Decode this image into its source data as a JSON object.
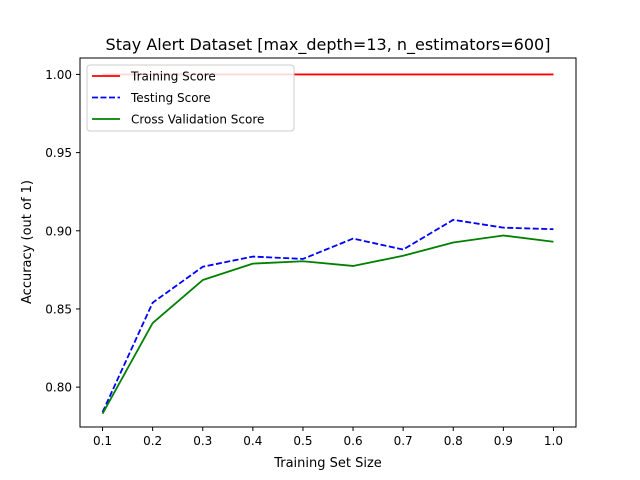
{
  "chart_data": {
    "type": "line",
    "title": "Stay Alert Dataset [max_depth=13, n_estimators=600]",
    "xlabel": "Training Set Size",
    "ylabel": "Accuracy (out of 1)",
    "x": [
      0.1,
      0.2,
      0.3,
      0.4,
      0.5,
      0.6,
      0.7,
      0.8,
      0.9,
      1.0
    ],
    "xticks": [
      "0.1",
      "0.2",
      "0.3",
      "0.4",
      "0.5",
      "0.6",
      "0.7",
      "0.8",
      "0.9",
      "1.0"
    ],
    "yticks": [
      "0.80",
      "0.85",
      "0.90",
      "0.95",
      "1.00"
    ],
    "xlim": [
      0.055,
      1.045
    ],
    "ylim": [
      0.7745,
      1.0105
    ],
    "grid": false,
    "legend_position": "upper-left",
    "series": [
      {
        "name": "Training Score",
        "color": "#ff0000",
        "linestyle": "solid",
        "values": [
          1.0,
          1.0,
          1.0,
          1.0,
          1.0,
          1.0,
          1.0,
          1.0,
          1.0,
          1.0
        ]
      },
      {
        "name": "Testing Score",
        "color": "#0000ff",
        "linestyle": "dashed",
        "values": [
          0.784,
          0.854,
          0.877,
          0.8835,
          0.882,
          0.895,
          0.888,
          0.907,
          0.902,
          0.901
        ]
      },
      {
        "name": "Cross Validation Score",
        "color": "#008000",
        "linestyle": "solid",
        "values": [
          0.783,
          0.841,
          0.8685,
          0.879,
          0.8805,
          0.8775,
          0.884,
          0.8925,
          0.897,
          0.893
        ]
      }
    ]
  }
}
